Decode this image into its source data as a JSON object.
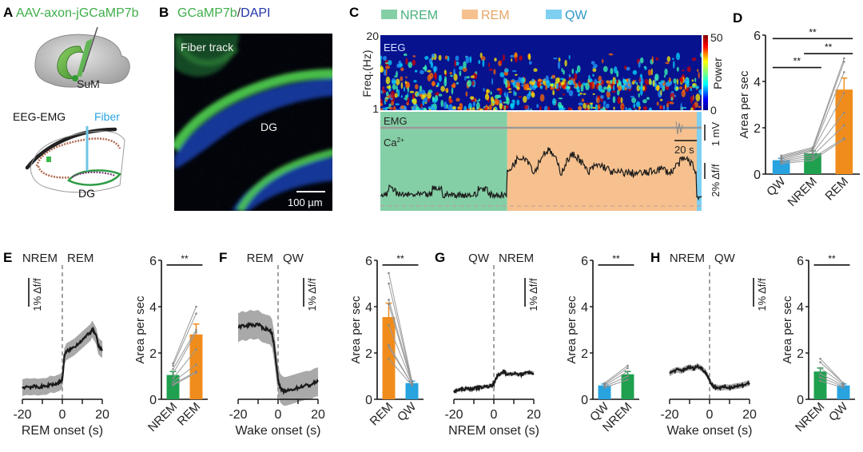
{
  "colors": {
    "nrem": "#1fa04f",
    "nrem_bg": "#85cfa6",
    "rem": "#f08c1c",
    "rem_bg": "#f6c18e",
    "qw": "#27a3df",
    "qw_bg": "#7fd0f0",
    "label_green": "#3fae4a",
    "label_blue": "#27a3df",
    "dapi_blue": "#2235a8",
    "trace": "#1a1a1a",
    "sem_band": "#8c8c8c",
    "subject_line": "#9a9a9a"
  },
  "panelA": {
    "letter": "A",
    "title": "AAV-axon-jGCaMP7b",
    "region_label": "SuM",
    "eeg_emg_label": "EEG-EMG",
    "fiber_label": "Fiber",
    "dg_label": "DG"
  },
  "panelB": {
    "letter": "B",
    "title_green": "GCaMP7b",
    "title_sep": "/",
    "title_blue": "DAPI",
    "fiber_track_label": "Fiber track",
    "dg_label": "DG",
    "scalebar_label": "100 µm"
  },
  "panelC": {
    "letter": "C",
    "legend": [
      {
        "name": "NREM",
        "color_key": "nrem_bg"
      },
      {
        "name": "REM",
        "color_key": "rem_bg"
      },
      {
        "name": "QW",
        "color_key": "qw_bg"
      }
    ],
    "ylabel": "Freq.(Hz)",
    "ytick_top": "20",
    "ytick_bottom": "1",
    "eeg_label": "EEG",
    "emg_label": "EMG",
    "ca_label": "Ca",
    "ca_sup": "2+",
    "colorbar_label": "Power",
    "colorbar_max": "50",
    "colorbar_min": "0",
    "emg_scale": "1 mV",
    "time_scale": "20 s",
    "ca_scale": "2% Δf/f",
    "state_fractions": {
      "nrem": 0.395,
      "rem": 0.59,
      "qw": 0.085
    }
  },
  "chart_data": [
    {
      "id": "D",
      "type": "bar",
      "letter": "D",
      "ylabel": "Area per sec",
      "ylim": [
        0,
        6
      ],
      "yticks": [
        "0",
        "2",
        "4",
        "6"
      ],
      "categories": [
        "QW",
        "NREM",
        "REM"
      ],
      "values": [
        0.6,
        0.9,
        3.65
      ],
      "errors": [
        0.08,
        0.1,
        0.5
      ],
      "bar_color_keys": [
        "qw",
        "nrem",
        "rem"
      ],
      "paired_lines": [
        [
          0.8,
          1.15,
          5.0
        ],
        [
          0.75,
          1.1,
          4.85
        ],
        [
          0.7,
          1.05,
          4.4
        ],
        [
          0.65,
          1.0,
          3.5
        ],
        [
          0.6,
          0.9,
          2.65
        ],
        [
          0.55,
          0.8,
          2.1
        ],
        [
          0.5,
          0.7,
          1.55
        ],
        [
          0.45,
          0.6,
          1.5
        ]
      ],
      "significance": [
        {
          "from": 0,
          "to": 2,
          "label": "**",
          "y": 5.85
        },
        {
          "from": 1,
          "to": 2,
          "label": "**",
          "y": 5.2
        },
        {
          "from": 0,
          "to": 1,
          "label": "**",
          "y": 4.6
        }
      ]
    },
    {
      "id": "E",
      "type": "line",
      "letter": "E",
      "state_before": "NREM",
      "state_after": "REM",
      "xlabel": "REM onset (s)",
      "xlim": [
        -20,
        20
      ],
      "xticks": [
        "-20",
        "0",
        "20"
      ],
      "scale_label": "1% Δf/f",
      "x": [
        -20,
        -18,
        -16,
        -14,
        -12,
        -10,
        -8,
        -6,
        -4,
        -2,
        -1,
        0,
        1,
        2,
        4,
        6,
        8,
        10,
        12,
        14,
        15,
        16,
        17,
        18,
        19,
        20
      ],
      "y": [
        0.15,
        0.2,
        0.18,
        0.2,
        0.17,
        0.2,
        0.2,
        0.3,
        0.28,
        0.35,
        0.38,
        0.5,
        1.45,
        1.65,
        1.75,
        1.85,
        2.0,
        2.15,
        2.3,
        2.45,
        2.6,
        2.45,
        2.3,
        1.9,
        1.8,
        1.75
      ],
      "sem": 0.35,
      "bar": {
        "ylabel": "Area per sec",
        "ylim": [
          0,
          6
        ],
        "yticks": [
          "0",
          "2",
          "4",
          "6"
        ],
        "categories": [
          "NREM",
          "REM"
        ],
        "values": [
          1.05,
          2.8
        ],
        "errors": [
          0.15,
          0.45
        ],
        "bar_color_keys": [
          "nrem",
          "rem"
        ],
        "paired_lines": [
          [
            1.55,
            4.0
          ],
          [
            1.45,
            3.7
          ],
          [
            1.3,
            3.0
          ],
          [
            1.1,
            2.9
          ],
          [
            0.9,
            2.15
          ],
          [
            0.75,
            1.5
          ],
          [
            0.65,
            1.2
          ],
          [
            0.6,
            1.15
          ]
        ],
        "significance": [
          {
            "from": 0,
            "to": 1,
            "label": "**",
            "y": 5.8
          }
        ]
      }
    },
    {
      "id": "F",
      "type": "line",
      "letter": "F",
      "state_before": "REM",
      "state_after": "QW",
      "xlabel": "Wake onset (s)",
      "xlim": [
        -20,
        20
      ],
      "xticks": [
        "-20",
        "0",
        "20"
      ],
      "scale_label": "1% Δf/f",
      "x": [
        -20,
        -18,
        -16,
        -14,
        -12,
        -10,
        -8,
        -6,
        -4,
        -3,
        -2,
        -1,
        0,
        1,
        2,
        3,
        4,
        6,
        8,
        10,
        12,
        14,
        16,
        18,
        20
      ],
      "y": [
        2.65,
        2.75,
        2.7,
        2.8,
        2.75,
        2.8,
        2.65,
        2.6,
        2.55,
        2.4,
        1.9,
        1.2,
        0.5,
        0.15,
        0.05,
        0.0,
        0.0,
        0.05,
        0.1,
        0.15,
        0.2,
        0.25,
        0.25,
        0.35,
        0.4
      ],
      "sem": 0.6,
      "bar": {
        "ylabel": "Area per sec",
        "ylim": [
          0,
          6
        ],
        "yticks": [
          "0",
          "2",
          "4",
          "6"
        ],
        "categories": [
          "REM",
          "QW"
        ],
        "values": [
          3.55,
          0.7
        ],
        "errors": [
          0.6,
          0.08
        ],
        "bar_color_keys": [
          "rem",
          "qw"
        ],
        "paired_lines": [
          [
            5.45,
            0.8
          ],
          [
            5.0,
            0.75
          ],
          [
            4.3,
            0.75
          ],
          [
            4.1,
            0.7
          ],
          [
            3.2,
            0.7
          ],
          [
            2.35,
            0.65
          ],
          [
            2.25,
            0.65
          ],
          [
            1.75,
            0.6
          ]
        ],
        "significance": [
          {
            "from": 0,
            "to": 1,
            "label": "**",
            "y": 5.8
          }
        ]
      }
    },
    {
      "id": "G",
      "type": "line",
      "letter": "G",
      "state_before": "QW",
      "state_after": "NREM",
      "xlabel": "NREM onset (s)",
      "xlim": [
        -20,
        20
      ],
      "xticks": [
        "-20",
        "0",
        "20"
      ],
      "scale_label": "1% Δf/f",
      "x": [
        -20,
        -18,
        -16,
        -14,
        -12,
        -10,
        -8,
        -6,
        -4,
        -2,
        -1,
        0,
        1,
        2,
        4,
        5,
        6,
        8,
        10,
        12,
        14,
        16,
        18,
        20
      ],
      "y": [
        0.0,
        0.05,
        0.08,
        0.1,
        0.1,
        0.12,
        0.15,
        0.18,
        0.2,
        0.22,
        0.25,
        0.3,
        0.55,
        0.65,
        0.75,
        0.85,
        0.75,
        0.7,
        0.75,
        0.7,
        0.72,
        0.75,
        0.8,
        0.75
      ],
      "sem": 0.08,
      "bar": {
        "ylabel": "Area per sec",
        "ylim": [
          0,
          6
        ],
        "yticks": [
          "0",
          "2",
          "4",
          "6"
        ],
        "categories": [
          "QW",
          "NREM"
        ],
        "values": [
          0.6,
          1.08
        ],
        "errors": [
          0.06,
          0.12
        ],
        "bar_color_keys": [
          "qw",
          "nrem"
        ],
        "paired_lines": [
          [
            0.7,
            1.45
          ],
          [
            0.65,
            1.35
          ],
          [
            0.6,
            1.2
          ],
          [
            0.55,
            1.0
          ],
          [
            0.5,
            0.85
          ]
        ],
        "significance": [
          {
            "from": 0,
            "to": 1,
            "label": "**",
            "y": 5.8
          }
        ]
      }
    },
    {
      "id": "H",
      "type": "line",
      "letter": "H",
      "state_before": "NREM",
      "state_after": "QW",
      "xlabel": "Wake onset (s)",
      "xlim": [
        -20,
        20
      ],
      "xticks": [
        "-20",
        "0",
        "20"
      ],
      "scale_label": "1% Δf/f",
      "x": [
        -20,
        -18,
        -16,
        -14,
        -12,
        -10,
        -8,
        -6,
        -4,
        -2,
        -1,
        0,
        1,
        2,
        4,
        6,
        8,
        10,
        12,
        14,
        16,
        18,
        20
      ],
      "y": [
        0.75,
        0.85,
        0.9,
        0.85,
        0.95,
        1.0,
        0.95,
        1.05,
        0.95,
        0.8,
        0.65,
        0.45,
        0.3,
        0.2,
        0.15,
        0.15,
        0.18,
        0.15,
        0.2,
        0.22,
        0.25,
        0.3,
        0.35
      ],
      "sem": 0.12,
      "bar": {
        "ylabel": "Area per sec",
        "ylim": [
          0,
          6
        ],
        "yticks": [
          "0",
          "2",
          "4",
          "6"
        ],
        "categories": [
          "NREM",
          "QW"
        ],
        "values": [
          1.2,
          0.6
        ],
        "errors": [
          0.15,
          0.06
        ],
        "bar_color_keys": [
          "nrem",
          "qw"
        ],
        "paired_lines": [
          [
            1.75,
            0.7
          ],
          [
            1.6,
            0.7
          ],
          [
            1.35,
            0.65
          ],
          [
            1.1,
            0.6
          ],
          [
            0.95,
            0.55
          ],
          [
            0.8,
            0.5
          ]
        ],
        "significance": [
          {
            "from": 0,
            "to": 1,
            "label": "**",
            "y": 5.8
          }
        ]
      }
    }
  ]
}
